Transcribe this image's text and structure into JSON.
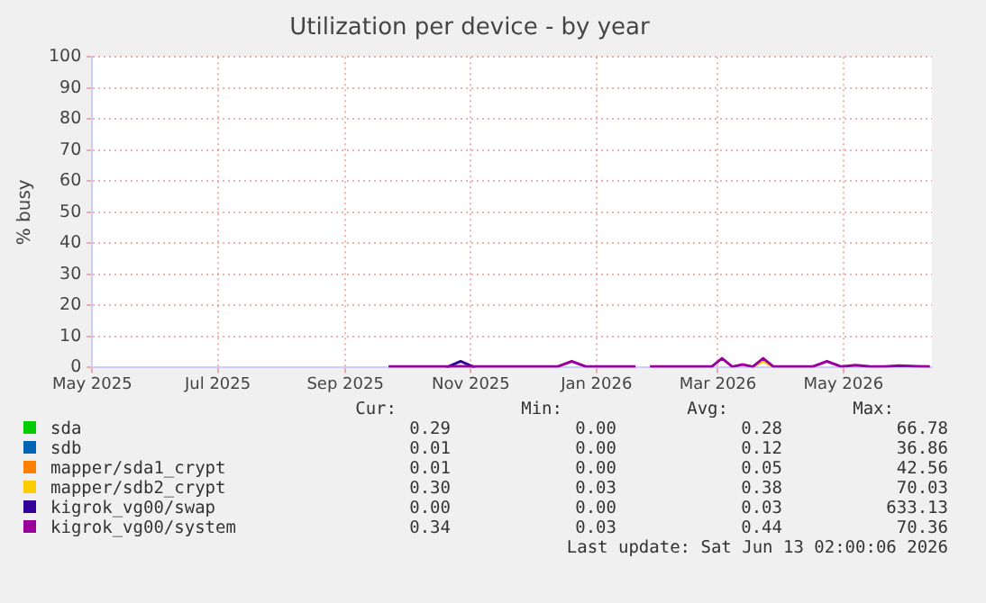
{
  "chart_data": {
    "type": "line",
    "title": "Utilization per device - by year",
    "ylabel": "% busy",
    "x": [
      "2025-09-22",
      "2025-10-20",
      "2025-10-27",
      "2025-11-03",
      "2025-12-13",
      "2025-12-20",
      "2025-12-27",
      "2026-01-20",
      "2026-01-23",
      "2026-01-27",
      "2026-02-26",
      "2026-03-03",
      "2026-03-08",
      "2026-03-13",
      "2026-03-18",
      "2026-03-23",
      "2026-03-28",
      "2026-04-16",
      "2026-04-23",
      "2026-04-30",
      "2026-05-07",
      "2026-05-14",
      "2026-05-21",
      "2026-05-28",
      "2026-06-12"
    ],
    "series": [
      {
        "name": "sda",
        "color": "#00cc00",
        "values": [
          null,
          null,
          null,
          null,
          null,
          null,
          null,
          null,
          null,
          null,
          null,
          null,
          null,
          null,
          null,
          null,
          null,
          null,
          null,
          null,
          null,
          null,
          null,
          null,
          null
        ]
      },
      {
        "name": "sdb",
        "color": "#0066b3",
        "values": [
          null,
          null,
          null,
          null,
          null,
          null,
          null,
          null,
          null,
          null,
          null,
          null,
          null,
          null,
          null,
          null,
          null,
          null,
          null,
          null,
          null,
          null,
          null,
          null,
          null
        ]
      },
      {
        "name": "mapper/sda1_crypt",
        "color": "#ff8000",
        "values": [
          null,
          null,
          null,
          null,
          null,
          null,
          null,
          null,
          null,
          null,
          null,
          null,
          null,
          null,
          null,
          null,
          null,
          null,
          null,
          null,
          null,
          null,
          null,
          null,
          null
        ]
      },
      {
        "name": "mapper/sdb2_crypt",
        "color": "#ffcc00",
        "values": [
          null,
          null,
          null,
          null,
          null,
          null,
          null,
          null,
          null,
          null,
          null,
          null,
          null,
          null,
          0.3,
          2,
          0.3,
          null,
          null,
          null,
          null,
          null,
          null,
          null,
          null
        ]
      },
      {
        "name": "kigrok_vg00/swap",
        "color": "#330099",
        "values": [
          null,
          0,
          2,
          0,
          null,
          null,
          null,
          null,
          null,
          null,
          null,
          null,
          null,
          null,
          null,
          null,
          null,
          null,
          null,
          null,
          null,
          null,
          null,
          null,
          null
        ]
      },
      {
        "name": "kigrok_vg00/system",
        "color": "#990099",
        "values": [
          0.3,
          0.3,
          0.4,
          0.3,
          0.3,
          2,
          0.3,
          0.3,
          null,
          0.3,
          0.3,
          3,
          0.3,
          1,
          0.3,
          3,
          0.3,
          0.3,
          2,
          0.3,
          0.8,
          0.3,
          0.3,
          0.6,
          0.3
        ]
      }
    ],
    "xlim": [
      "2025-05-01",
      "2026-06-13"
    ],
    "xticks": [
      {
        "value": "2025-05-01",
        "label": "May 2025"
      },
      {
        "value": "2025-07-01",
        "label": "Jul 2025"
      },
      {
        "value": "2025-09-01",
        "label": "Sep 2025"
      },
      {
        "value": "2025-11-01",
        "label": "Nov 2025"
      },
      {
        "value": "2026-01-01",
        "label": "Jan 2026"
      },
      {
        "value": "2026-03-01",
        "label": "Mar 2026"
      },
      {
        "value": "2026-05-01",
        "label": "May 2026"
      }
    ],
    "ylim": [
      0,
      100
    ],
    "yticks": [
      0,
      10,
      20,
      30,
      40,
      50,
      60,
      70,
      80,
      90,
      100
    ],
    "grid": true,
    "legend": "bottom",
    "marker": "none",
    "line_style": "solid",
    "annotations": [
      "Cur:",
      "Min:",
      "Avg:",
      "Max:",
      "0.29",
      "0.00",
      "0.28",
      "66.78",
      "0.01",
      "0.00",
      "0.12",
      "36.86",
      "0.01",
      "0.00",
      "0.05",
      "42.56",
      "0.30",
      "0.03",
      "0.38",
      "70.03",
      "0.00",
      "0.00",
      "0.03",
      "633.13",
      "0.34",
      "0.03",
      "0.44",
      "70.36",
      "Last update: Sat Jun 13 02:00:06 2026"
    ]
  }
}
